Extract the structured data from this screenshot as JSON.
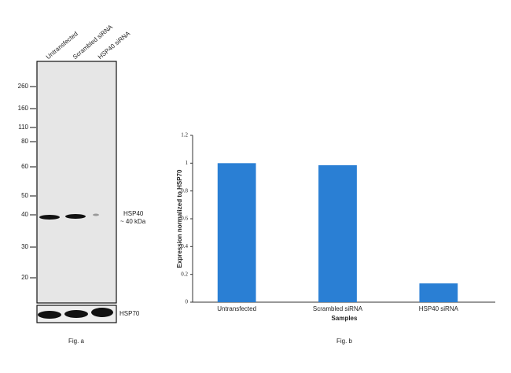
{
  "blot": {
    "lanes": [
      "Untransfected",
      "Scrambled siRNA",
      "HSP40 siRNA"
    ],
    "markers": [
      260,
      160,
      110,
      80,
      60,
      50,
      40,
      30,
      20
    ],
    "band_label": "HSP40",
    "band_size": "~ 40 kDa",
    "loading_label": "HSP70",
    "caption": "Fig. a"
  },
  "chart_data": {
    "type": "bar",
    "categories": [
      "Untransfected",
      "Scrambled siRNA",
      "HSP40 siRNA"
    ],
    "values": [
      1,
      0.985,
      0.135
    ],
    "color": "#2a7fd4",
    "ylim": [
      0,
      1.2
    ],
    "yticks": [
      0,
      0.2,
      0.4,
      0.6,
      0.8,
      1,
      1.2
    ],
    "ylabel": "Expression normalized to HSP70",
    "xlabel": "Samples",
    "caption": "Fig. b"
  }
}
